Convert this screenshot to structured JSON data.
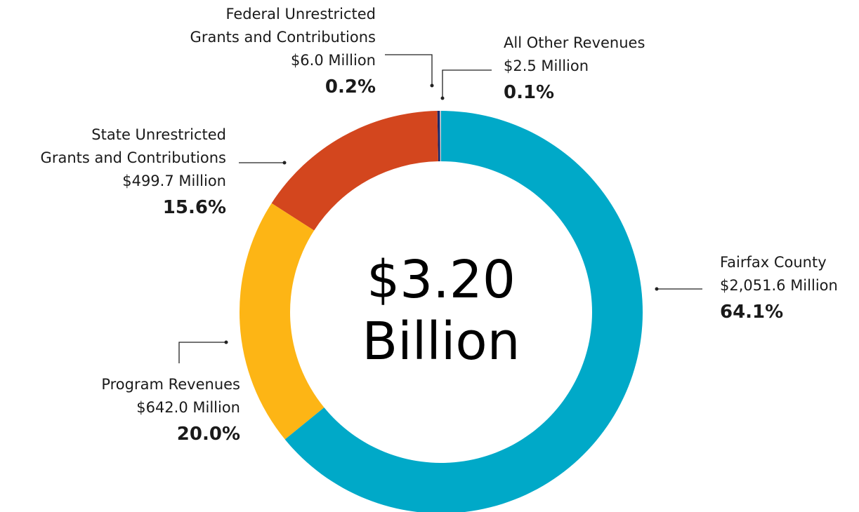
{
  "chart_data": {
    "type": "donut",
    "center_label": "$3.20\nBillion",
    "categories": [
      "Fairfax County",
      "Program Revenues",
      "State Unrestricted\nGrants and Contributions",
      "Federal Unrestricted\nGrants and Contributions",
      "All Other Revenues"
    ],
    "amount_labels": [
      "$2,051.6 Million",
      "$642.0 Million",
      "$499.7 Million",
      "$6.0 Million",
      "$2.5 Million"
    ],
    "values": [
      64.1,
      20.0,
      15.6,
      0.2,
      0.1
    ],
    "value_labels": [
      "64.1%",
      "20.0%",
      "15.6%",
      "0.2%",
      "0.1%"
    ],
    "colors": [
      "#00a9c8",
      "#fdb515",
      "#d3461e",
      "#1b2a6b",
      "#c5ced6"
    ]
  }
}
